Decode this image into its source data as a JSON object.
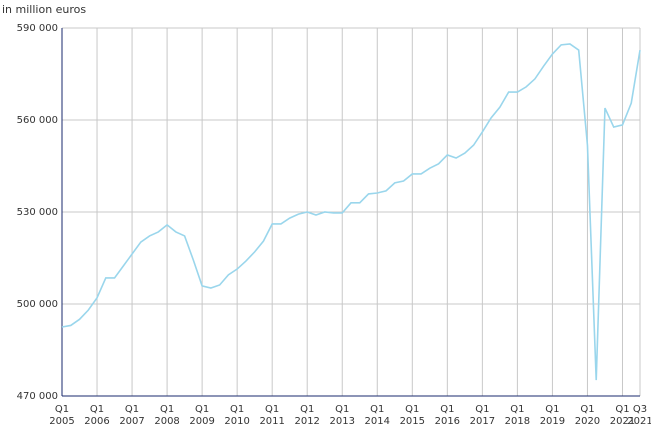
{
  "chart_data": {
    "type": "line",
    "y_axis_label": "in million euros",
    "categories": [
      "Q1 2005",
      null,
      null,
      null,
      "Q1 2006",
      null,
      null,
      null,
      "Q1 2007",
      null,
      null,
      null,
      "Q1 2008",
      null,
      null,
      null,
      "Q1 2009",
      null,
      null,
      null,
      "Q1 2010",
      null,
      null,
      null,
      "Q1 2011",
      null,
      null,
      null,
      "Q1 2012",
      null,
      null,
      null,
      "Q1 2013",
      null,
      null,
      null,
      "Q1 2014",
      null,
      null,
      null,
      "Q1 2015",
      null,
      null,
      null,
      "Q1 2016",
      null,
      null,
      null,
      "Q1 2017",
      null,
      null,
      null,
      "Q1 2018",
      null,
      null,
      null,
      "Q1 2019",
      null,
      null,
      null,
      "Q1 2020",
      null,
      null,
      null,
      "Q1 2021",
      null,
      "Q3 2021"
    ],
    "series": [
      {
        "color": "#9ad6ec",
        "values": [
          492500,
          493000,
          495000,
          498000,
          502000,
          508500,
          508500,
          512400,
          516300,
          520200,
          522200,
          523500,
          525800,
          523500,
          522200,
          514300,
          505900,
          505200,
          506200,
          509500,
          511400,
          514000,
          517000,
          520500,
          526100,
          526100,
          528000,
          529300,
          530000,
          529000,
          530000,
          529700,
          529700,
          533000,
          533000,
          535900,
          536200,
          536900,
          539500,
          540100,
          542400,
          542400,
          544300,
          545700,
          548600,
          547600,
          549200,
          551800,
          556100,
          560700,
          564200,
          569100,
          569100,
          570800,
          573400,
          577600,
          581500,
          584500,
          584800,
          582800,
          551800,
          475200,
          563900,
          557700,
          558400,
          565500,
          582800
        ]
      }
    ],
    "ylim": [
      470000,
      590000
    ],
    "yticks": [
      {
        "value": 470000,
        "label": "470 000"
      },
      {
        "value": 500000,
        "label": "500 000"
      },
      {
        "value": 530000,
        "label": "530 000"
      },
      {
        "value": 560000,
        "label": "560 000"
      },
      {
        "value": 590000,
        "label": "590 000"
      }
    ],
    "grid": true,
    "axis_color": "#1a2a6c"
  }
}
